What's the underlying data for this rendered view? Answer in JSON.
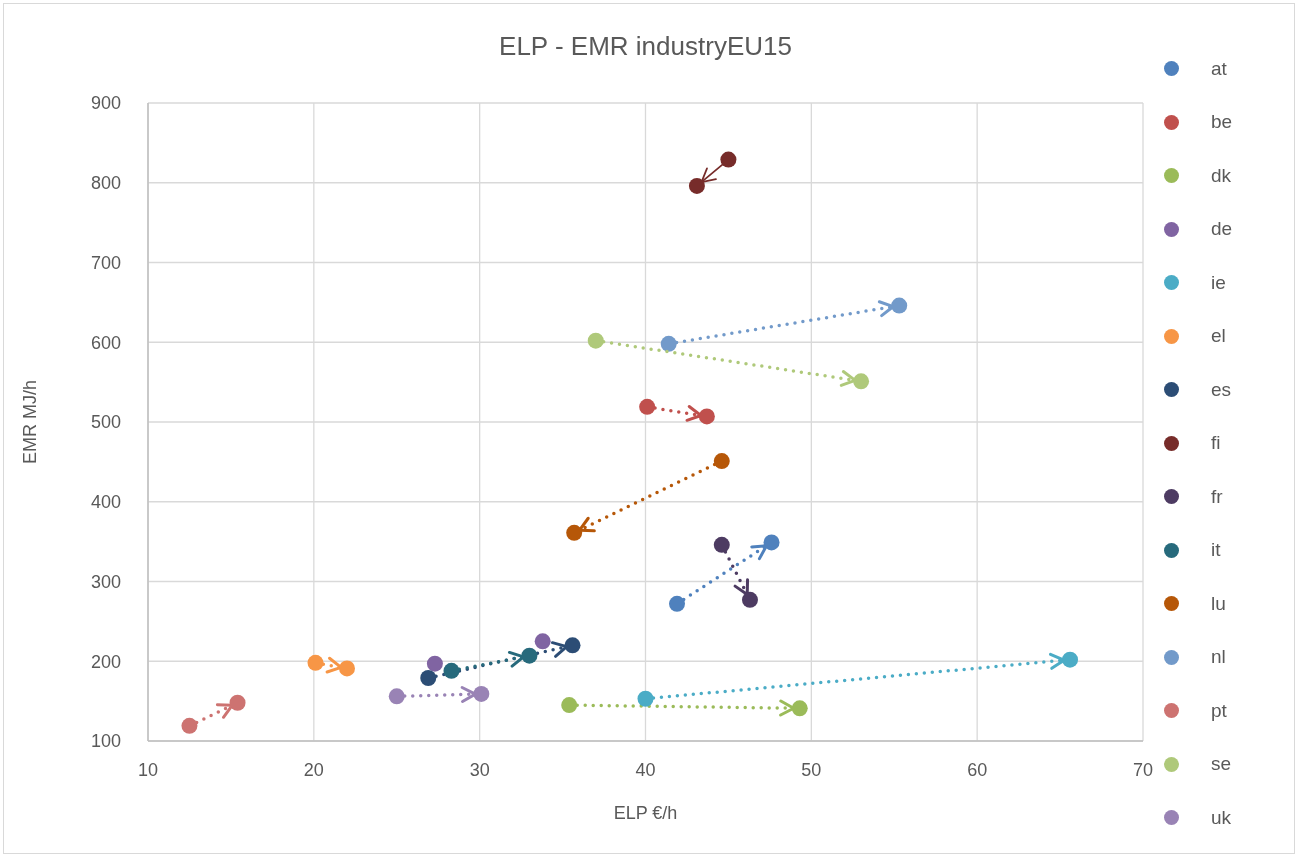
{
  "chart_data": {
    "type": "scatter",
    "title": "ELP - EMR industryEU15",
    "xlabel": "ELP €/h",
    "ylabel": "EMR MJ/h",
    "xlim": [
      10,
      70
    ],
    "xticks": [
      10,
      20,
      30,
      40,
      50,
      60,
      70
    ],
    "ylim": [
      100,
      900
    ],
    "yticks": [
      100,
      200,
      300,
      400,
      500,
      600,
      700,
      800,
      900
    ],
    "grid": true,
    "legend": "right",
    "marker": "circle",
    "line_style": "dotted",
    "series": [
      {
        "name": "at",
        "type": "line",
        "color": "#4f81bd",
        "x": [
          41.9,
          47.6
        ],
        "values": [
          272,
          349
        ]
      },
      {
        "name": "be",
        "type": "line",
        "color": "#c0504d",
        "x": [
          40.1,
          43.7
        ],
        "values": [
          519,
          507
        ]
      },
      {
        "name": "dk",
        "type": "line",
        "color": "#9bbb59",
        "x": [
          35.4,
          49.3
        ],
        "values": [
          145,
          141
        ]
      },
      {
        "name": "de",
        "color": "#8064a2",
        "x": [
          27.3,
          33.8
        ],
        "values": [
          197,
          225
        ]
      },
      {
        "name": "ie",
        "type": "line",
        "color": "#4bacc6",
        "x": [
          40.0,
          65.6
        ],
        "values": [
          153,
          202
        ]
      },
      {
        "name": "el",
        "type": "line",
        "color": "#f79646",
        "x": [
          20.1,
          22.0
        ],
        "values": [
          198,
          191
        ]
      },
      {
        "name": "es",
        "type": "line",
        "color": "#2c4d75",
        "x": [
          26.9,
          35.6
        ],
        "values": [
          179,
          220
        ]
      },
      {
        "name": "fi",
        "type": "line",
        "line_style": "solid",
        "color": "#772c2a",
        "x": [
          45.0,
          43.1
        ],
        "values": [
          829,
          796
        ]
      },
      {
        "name": "fr",
        "type": "line",
        "color": "#4d3b62",
        "x": [
          44.6,
          46.3
        ],
        "values": [
          346,
          277
        ]
      },
      {
        "name": "it",
        "type": "line",
        "color": "#276a7c",
        "x": [
          28.3,
          33.0
        ],
        "values": [
          188,
          207
        ]
      },
      {
        "name": "lu",
        "type": "line",
        "color": "#b65708",
        "x": [
          44.6,
          35.7
        ],
        "values": [
          451,
          361
        ]
      },
      {
        "name": "nl",
        "type": "line",
        "color": "#729aca",
        "x": [
          41.4,
          55.3
        ],
        "values": [
          598,
          646
        ]
      },
      {
        "name": "pt",
        "type": "line",
        "color": "#cd7371",
        "x": [
          12.5,
          15.4
        ],
        "values": [
          119,
          148
        ]
      },
      {
        "name": "se",
        "type": "line",
        "color": "#afc97a",
        "x": [
          37.0,
          53.0
        ],
        "values": [
          602,
          551
        ]
      },
      {
        "name": "uk",
        "type": "line",
        "color": "#9983b5",
        "x": [
          25.0,
          30.1
        ],
        "values": [
          156,
          159
        ]
      }
    ]
  }
}
